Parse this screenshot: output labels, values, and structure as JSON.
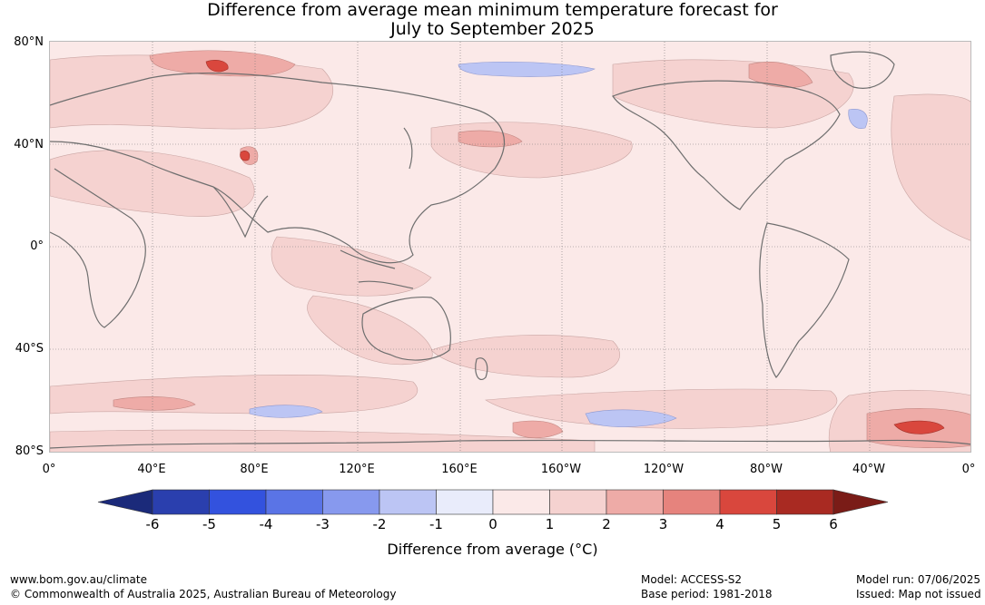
{
  "title_line1": "Difference from average mean minimum temperature forecast for",
  "title_line2": "July to September 2025",
  "lat_labels": [
    "80°N",
    "40°N",
    "0°",
    "40°S",
    "80°S"
  ],
  "lon_labels": [
    "0°",
    "40°E",
    "80°E",
    "120°E",
    "160°E",
    "160°W",
    "120°W",
    "80°W",
    "40°W",
    "0°"
  ],
  "colorbar": {
    "title": "Difference from average (°C)",
    "ticks": [
      "-6",
      "-5",
      "-4",
      "-3",
      "-2",
      "-1",
      "0",
      "1",
      "2",
      "3",
      "4",
      "5",
      "6"
    ],
    "colors": [
      "#1b2a7a",
      "#2a3fae",
      "#3352de",
      "#5a74e6",
      "#8799ee",
      "#bcc5f4",
      "#e9ecfb",
      "#fbe9e8",
      "#f5d2d0",
      "#eeaba7",
      "#e6837d",
      "#d9473d",
      "#a92a22",
      "#7a1c17"
    ]
  },
  "footer": {
    "url": "www.bom.gov.au/climate",
    "copyright": "© Commonwealth of Australia 2025, Australian Bureau of Meteorology",
    "model": "Model: ACCESS-S2",
    "base_period": "Base period: 1981-2018",
    "model_run": "Model run: 07/06/2025",
    "issued": "Issued: Map not issued"
  }
}
